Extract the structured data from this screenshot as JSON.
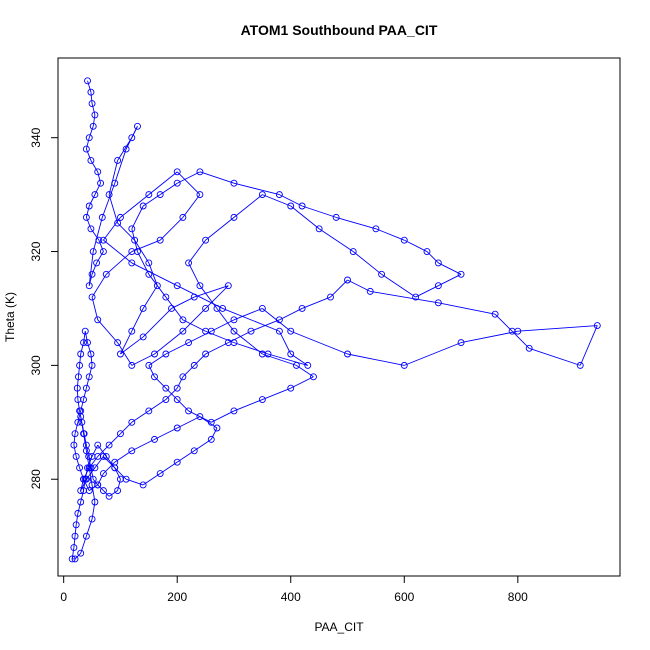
{
  "chart_data": {
    "type": "scatter",
    "title": "ATOM1 Southbound PAA_CIT",
    "xlabel": "PAA_CIT",
    "ylabel": "Theta (K)",
    "xlim": [
      -10,
      980
    ],
    "ylim": [
      263,
      354
    ],
    "x_ticks": [
      0,
      200,
      400,
      600,
      800
    ],
    "y_ticks": [
      280,
      300,
      320,
      340
    ],
    "grid": false,
    "legend": "none",
    "color": "#0000ff",
    "marker": "open-circle",
    "connected": true,
    "series": [
      {
        "x": [
          42,
          48,
          50,
          55,
          52,
          45,
          40,
          48,
          60,
          65,
          55,
          45,
          40,
          48,
          62,
          70,
          58,
          50,
          45,
          52,
          68,
          90,
          110,
          130,
          120,
          95,
          80,
          95,
          125,
          150,
          165,
          140,
          120,
          100,
          140,
          190,
          230,
          290,
          250,
          210,
          160,
          120,
          95,
          60,
          50,
          75,
          120,
          170,
          210,
          240,
          200,
          150,
          100,
          70,
          120,
          200,
          280,
          380,
          400,
          430,
          360,
          300,
          250,
          210,
          180,
          150,
          130,
          120,
          140,
          170,
          200,
          240,
          300,
          380,
          420,
          480,
          550,
          600,
          640,
          660,
          700,
          660,
          620,
          560,
          510,
          450,
          400,
          350,
          300,
          250,
          220,
          240,
          270,
          300,
          350,
          410,
          440,
          400,
          350,
          300,
          260,
          220,
          200,
          180,
          160,
          150,
          180,
          220,
          260,
          300,
          350,
          400,
          500,
          600,
          700,
          800,
          940,
          910,
          820,
          790,
          760,
          660,
          540,
          500,
          470,
          420,
          380,
          330,
          290,
          250,
          230,
          210,
          200,
          180,
          150,
          120,
          100,
          80,
          60,
          45,
          35,
          30,
          40,
          55,
          70,
          90,
          110,
          140,
          170,
          200,
          230,
          260,
          270,
          240,
          200,
          160,
          120,
          90,
          70,
          60,
          45,
          35,
          28,
          22,
          18,
          20,
          25,
          30,
          35,
          40,
          45,
          50,
          48,
          42,
          38,
          35,
          30,
          28,
          26,
          24,
          25,
          28,
          32,
          36,
          40,
          44,
          48,
          52,
          60,
          70,
          80,
          95,
          100,
          90,
          75,
          60,
          50,
          42,
          38,
          35,
          30,
          25,
          22,
          20,
          18,
          15,
          20,
          30,
          40,
          50,
          55,
          50,
          45,
          40,
          35,
          30
        ],
        "y": [
          350,
          348,
          346,
          344,
          342,
          340,
          338,
          336,
          334,
          332,
          330,
          328,
          326,
          324,
          322,
          320,
          318,
          316,
          314,
          320,
          326,
          332,
          338,
          342,
          340,
          336,
          330,
          325,
          322,
          318,
          314,
          310,
          306,
          302,
          305,
          310,
          312,
          314,
          310,
          306,
          302,
          300,
          304,
          308,
          312,
          316,
          320,
          322,
          326,
          330,
          334,
          330,
          326,
          322,
          318,
          314,
          310,
          306,
          302,
          300,
          302,
          304,
          306,
          308,
          312,
          316,
          320,
          324,
          328,
          330,
          332,
          334,
          332,
          330,
          328,
          326,
          324,
          322,
          320,
          318,
          316,
          314,
          312,
          316,
          320,
          324,
          328,
          330,
          326,
          322,
          318,
          314,
          310,
          306,
          302,
          300,
          298,
          296,
          294,
          292,
          290,
          292,
          294,
          296,
          298,
          300,
          302,
          304,
          306,
          308,
          310,
          306,
          302,
          300,
          304,
          306,
          307,
          300,
          303,
          306,
          309,
          311,
          313,
          315,
          312,
          310,
          308,
          306,
          304,
          302,
          300,
          298,
          296,
          294,
          292,
          290,
          288,
          286,
          284,
          282,
          280,
          278,
          280,
          282,
          284,
          282,
          280,
          279,
          281,
          283,
          285,
          287,
          289,
          291,
          289,
          287,
          285,
          283,
          281,
          279,
          278,
          280,
          282,
          284,
          286,
          288,
          290,
          292,
          294,
          296,
          298,
          300,
          302,
          304,
          306,
          304,
          302,
          300,
          298,
          296,
          294,
          292,
          290,
          288,
          286,
          284,
          282,
          280,
          279,
          278,
          277,
          278,
          280,
          282,
          284,
          286,
          284,
          282,
          280,
          278,
          276,
          274,
          272,
          270,
          268,
          266,
          266,
          267,
          270,
          273,
          276,
          279,
          282,
          285,
          288,
          291
        ]
      }
    ]
  }
}
